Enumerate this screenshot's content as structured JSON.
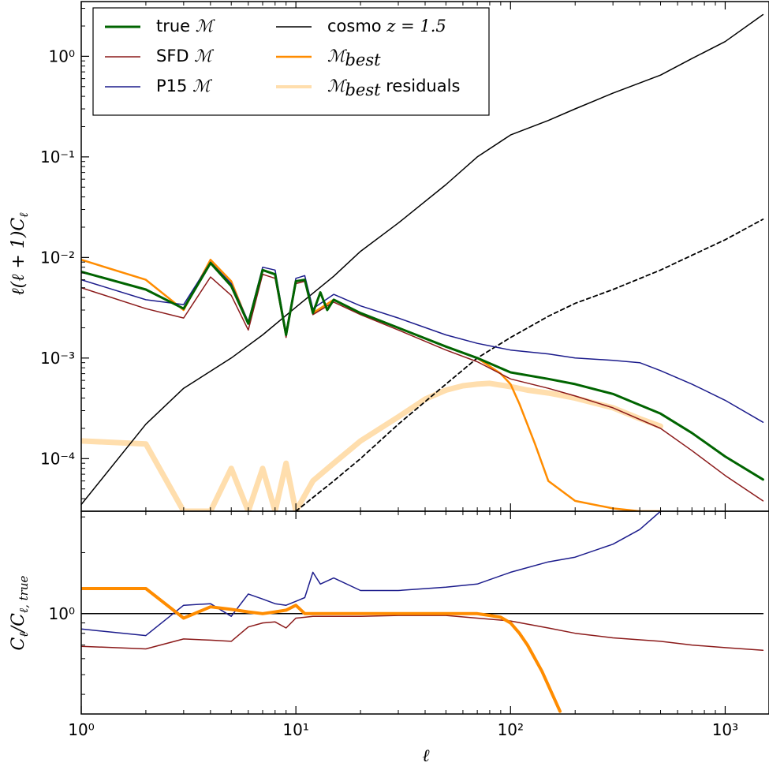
{
  "chart_data": [
    {
      "type": "line",
      "panel": "top",
      "xscale": "log",
      "yscale": "log",
      "xlim": [
        1,
        1600
      ],
      "ylim": [
        3e-05,
        3.5
      ],
      "ylabel": "ℓ(ℓ+1)C_ℓ",
      "yticks": [
        {
          "value": 0.0001,
          "label": "10⁻⁴"
        },
        {
          "value": 0.001,
          "label": "10⁻³"
        },
        {
          "value": 0.01,
          "label": "10⁻²"
        },
        {
          "value": 0.1,
          "label": "10⁻¹"
        },
        {
          "value": 1,
          "label": "10⁰"
        }
      ],
      "legend_position": "top-left",
      "legend": [
        {
          "series": "true",
          "label": "true ",
          "math": "ℳ",
          "sub": ""
        },
        {
          "series": "sfd",
          "label": "SFD ",
          "math": "ℳ",
          "sub": ""
        },
        {
          "series": "p15",
          "label": "P15 ",
          "math": "ℳ",
          "sub": ""
        },
        {
          "series": "cosmo",
          "label": "cosmo ",
          "math": "z = 1.5",
          "sub": ""
        },
        {
          "series": "best",
          "label": "",
          "math": "ℳ",
          "sub": "best"
        },
        {
          "series": "resid",
          "label": " residuals",
          "math": "ℳ",
          "sub": "best"
        }
      ],
      "series": [
        {
          "key": "true",
          "color": "#006400",
          "width": 3,
          "x": [
            1,
            2,
            3,
            4,
            5,
            6,
            7,
            8,
            9,
            10,
            11,
            12,
            13,
            14,
            15,
            20,
            30,
            50,
            70,
            100,
            150,
            200,
            300,
            500,
            700,
            1000,
            1500
          ],
          "y": [
            0.0072,
            0.0048,
            0.0031,
            0.0088,
            0.0052,
            0.0022,
            0.0075,
            0.0068,
            0.0017,
            0.0058,
            0.006,
            0.0028,
            0.0045,
            0.003,
            0.0038,
            0.0028,
            0.002,
            0.0013,
            0.001,
            0.00072,
            0.00062,
            0.00055,
            0.00044,
            0.00028,
            0.00018,
            0.000105,
            6.2e-05
          ]
        },
        {
          "key": "sfd",
          "color": "#8b1a1a",
          "width": 1.5,
          "x": [
            1,
            2,
            3,
            4,
            5,
            6,
            7,
            8,
            9,
            10,
            11,
            12,
            15,
            20,
            30,
            50,
            70,
            100,
            150,
            200,
            300,
            500,
            700,
            1000,
            1500
          ],
          "y": [
            0.005,
            0.0031,
            0.0025,
            0.0064,
            0.0042,
            0.0019,
            0.0068,
            0.0062,
            0.0016,
            0.0055,
            0.0058,
            0.0027,
            0.0036,
            0.0027,
            0.0019,
            0.0012,
            0.00092,
            0.00062,
            0.0005,
            0.00042,
            0.00032,
            0.0002,
            0.00012,
            6.8e-05,
            3.8e-05
          ]
        },
        {
          "key": "p15",
          "color": "#1c1c8c",
          "width": 1.5,
          "x": [
            1,
            2,
            3,
            4,
            5,
            6,
            7,
            8,
            9,
            10,
            11,
            12,
            15,
            20,
            30,
            50,
            70,
            100,
            150,
            200,
            300,
            400,
            500,
            700,
            1000,
            1500
          ],
          "y": [
            0.006,
            0.0038,
            0.0034,
            0.009,
            0.0055,
            0.0023,
            0.008,
            0.0075,
            0.0018,
            0.0062,
            0.0066,
            0.0031,
            0.0043,
            0.0033,
            0.0025,
            0.0017,
            0.0014,
            0.0012,
            0.0011,
            0.001,
            0.00095,
            0.0009,
            0.00075,
            0.00055,
            0.00038,
            0.00023
          ]
        },
        {
          "key": "cosmo",
          "color": "#000000",
          "width": 1.5,
          "x": [
            1,
            2,
            3,
            5,
            7,
            10,
            15,
            20,
            30,
            50,
            70,
            100,
            150,
            200,
            300,
            500,
            700,
            1000,
            1500
          ],
          "y": [
            3.5e-05,
            0.00022,
            0.0005,
            0.001,
            0.0017,
            0.0032,
            0.0065,
            0.0115,
            0.022,
            0.053,
            0.1,
            0.165,
            0.23,
            0.3,
            0.43,
            0.65,
            0.95,
            1.4,
            2.6
          ]
        },
        {
          "key": "cosmo_dashed",
          "color": "#000000",
          "width": 1.8,
          "dashed": true,
          "x": [
            10,
            15,
            20,
            30,
            50,
            70,
            100,
            150,
            200,
            300,
            500,
            700,
            1000,
            1500
          ],
          "y": [
            3e-05,
            6e-05,
            0.0001,
            0.00022,
            0.00055,
            0.001,
            0.0016,
            0.0026,
            0.0035,
            0.0048,
            0.0075,
            0.0105,
            0.015,
            0.024
          ]
        },
        {
          "key": "best",
          "color": "#ff8c00",
          "width": 2.5,
          "x": [
            1,
            2,
            3,
            4,
            5,
            6,
            7,
            8,
            9,
            10,
            11,
            12,
            15,
            20,
            30,
            50,
            70,
            90,
            100,
            110,
            130,
            150,
            200,
            300,
            400,
            500
          ],
          "y": [
            0.0095,
            0.006,
            0.003,
            0.0095,
            0.0058,
            0.0022,
            0.0075,
            0.0068,
            0.0017,
            0.0058,
            0.006,
            0.0028,
            0.0038,
            0.0028,
            0.002,
            0.0013,
            0.001,
            0.0007,
            0.00055,
            0.00035,
            0.00014,
            6e-05,
            3.8e-05,
            3.2e-05,
            3e-05,
            3e-05
          ]
        },
        {
          "key": "resid",
          "color": "#ffdead",
          "width": 7,
          "x": [
            1,
            2,
            3,
            4,
            5,
            6,
            7,
            8,
            9,
            10,
            12,
            15,
            20,
            30,
            40,
            50,
            60,
            70,
            80,
            100,
            120,
            150,
            200,
            300,
            400,
            500
          ],
          "y": [
            0.00015,
            0.00014,
            3e-05,
            3e-05,
            8e-05,
            3e-05,
            8e-05,
            3e-05,
            9e-05,
            3e-05,
            6e-05,
            9e-05,
            0.00015,
            0.00026,
            0.00039,
            0.00048,
            0.00053,
            0.00055,
            0.00056,
            0.00052,
            0.00048,
            0.00045,
            0.0004,
            0.00032,
            0.00025,
            0.00021
          ]
        }
      ]
    },
    {
      "type": "line",
      "panel": "bottom",
      "xscale": "log",
      "yscale": "log",
      "xlim": [
        1,
        1600
      ],
      "ylim": [
        0.32,
        3.2
      ],
      "xlabel": "ℓ",
      "ylabel": "C_ℓ / C_ℓ,true",
      "xticks": [
        {
          "value": 1,
          "label": "10⁰"
        },
        {
          "value": 10,
          "label": "10¹"
        },
        {
          "value": 100,
          "label": "10²"
        },
        {
          "value": 1000,
          "label": "10³"
        }
      ],
      "yticks": [
        {
          "value": 1,
          "label": "10⁰"
        }
      ],
      "series": [
        {
          "key": "unity",
          "color": "#000000",
          "width": 1.5,
          "x": [
            1,
            1500
          ],
          "y": [
            1.0,
            1.0
          ]
        },
        {
          "key": "sfd_ratio",
          "color": "#8b1a1a",
          "width": 1.5,
          "x": [
            1,
            2,
            3,
            4,
            5,
            6,
            7,
            8,
            9,
            10,
            11,
            12,
            15,
            20,
            30,
            50,
            70,
            100,
            150,
            200,
            300,
            500,
            700,
            1000,
            1500
          ],
          "y": [
            0.69,
            0.67,
            0.75,
            0.74,
            0.73,
            0.86,
            0.9,
            0.91,
            0.85,
            0.95,
            0.96,
            0.97,
            0.97,
            0.97,
            0.98,
            0.98,
            0.95,
            0.92,
            0.85,
            0.8,
            0.76,
            0.73,
            0.7,
            0.68,
            0.66
          ]
        },
        {
          "key": "p15_ratio",
          "color": "#1c1c8c",
          "width": 1.5,
          "x": [
            1,
            2,
            3,
            4,
            5,
            6,
            7,
            8,
            9,
            10,
            11,
            12,
            13,
            15,
            20,
            30,
            50,
            70,
            100,
            150,
            200,
            300,
            400,
            500,
            700,
            1000,
            1500
          ],
          "y": [
            0.84,
            0.78,
            1.1,
            1.12,
            0.97,
            1.25,
            1.18,
            1.12,
            1.1,
            1.15,
            1.2,
            1.6,
            1.4,
            1.5,
            1.3,
            1.3,
            1.35,
            1.4,
            1.6,
            1.8,
            1.9,
            2.2,
            2.6,
            3.2,
            3.3,
            3.3,
            3.3
          ]
        },
        {
          "key": "best_ratio",
          "color": "#ff8c00",
          "width": 4,
          "x": [
            1,
            2,
            3,
            4,
            5,
            6,
            7,
            8,
            9,
            10,
            11,
            12,
            15,
            20,
            30,
            40,
            50,
            60,
            70,
            80,
            90,
            100,
            110,
            120,
            140,
            160,
            170
          ],
          "y": [
            1.33,
            1.33,
            0.95,
            1.08,
            1.05,
            1.02,
            1.0,
            1.02,
            1.04,
            1.1,
            1.0,
            1.0,
            1.0,
            1.0,
            1.0,
            1.0,
            1.0,
            1.0,
            1.0,
            0.98,
            0.96,
            0.9,
            0.8,
            0.7,
            0.52,
            0.38,
            0.33
          ]
        }
      ]
    }
  ]
}
